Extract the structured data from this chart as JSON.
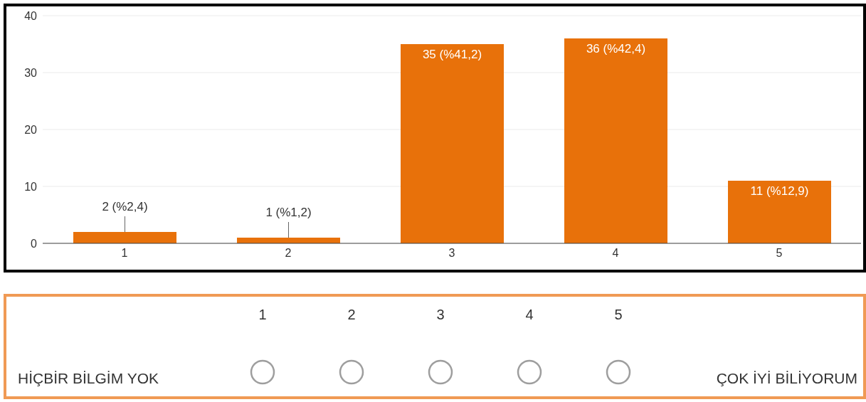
{
  "chart_data": {
    "type": "bar",
    "categories": [
      "1",
      "2",
      "3",
      "4",
      "5"
    ],
    "values": [
      2,
      1,
      35,
      36,
      11
    ],
    "color": "#e8710a",
    "value_labels": [
      "2 (%2,4)",
      "1 (%1,2)",
      "35 (%41,2)",
      "36 (%42,4)",
      "11 (%12,9)"
    ],
    "ylim": [
      0,
      40
    ],
    "yticks": [
      0,
      10,
      20,
      30,
      40
    ],
    "grid": "y",
    "annotations": [
      "HİÇBİR BİLGİM YOK",
      "ÇOK İYİ BİLİYORUM"
    ]
  }
}
